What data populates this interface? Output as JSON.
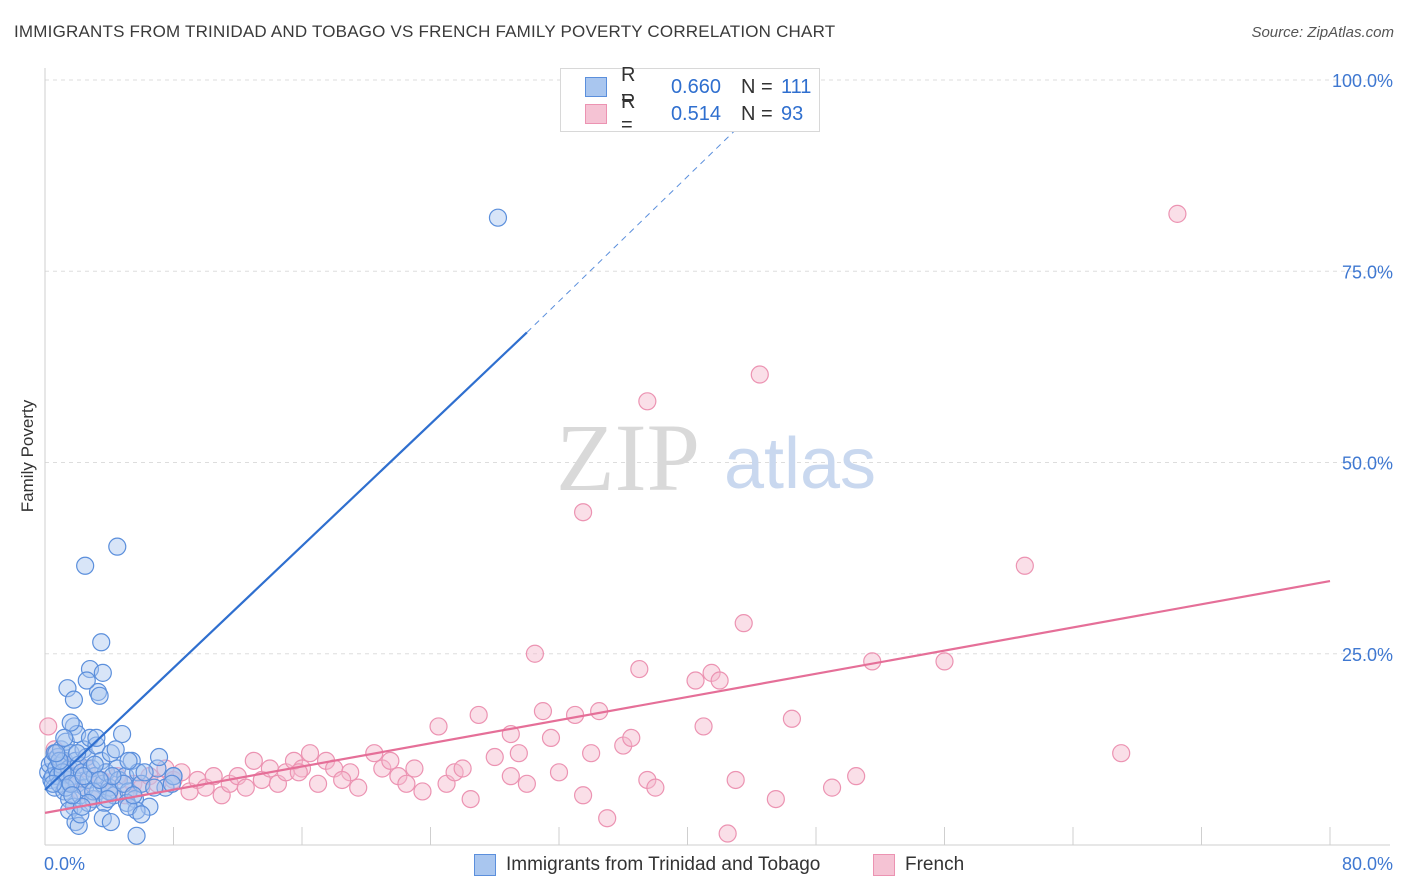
{
  "header": {
    "title": "IMMIGRANTS FROM TRINIDAD AND TOBAGO VS FRENCH FAMILY POVERTY CORRELATION CHART",
    "source": "Source: ZipAtlas.com"
  },
  "watermark": {
    "zip": "ZIP",
    "atlas": "atlas"
  },
  "legend": {
    "series1": {
      "r_label": "R =",
      "r_value": "0.660",
      "n_label": "N =",
      "n_value": "111"
    },
    "series2": {
      "r_label": "R =",
      "r_value": "0.514",
      "n_label": "N =",
      "n_value": "93"
    }
  },
  "colors": {
    "blue": "#2f6fcf",
    "blue_fill": "#a9c6ef",
    "blue_stroke": "#5b8fdc",
    "pink": "#e56f98",
    "pink_fill": "#f5b8cc",
    "pink_stroke": "#ec93b2",
    "grid": "#dddddd",
    "tick_text": "#3f78d1"
  },
  "chart_data": {
    "type": "scatter",
    "xlabel": "",
    "ylabel": "Family Poverty",
    "xlim": [
      0,
      80
    ],
    "ylim": [
      0,
      100
    ],
    "x_tick_labels": [
      "0.0%",
      "80.0%"
    ],
    "y_ticks": [
      25,
      50,
      75,
      100
    ],
    "y_tick_labels": [
      "25.0%",
      "50.0%",
      "75.0%",
      "100.0%"
    ],
    "grid": true,
    "series": [
      {
        "name": "Immigrants from Trinidad and Tobago",
        "color": "#2f6fcf",
        "trend": {
          "x": [
            0,
            30
          ],
          "y": [
            7.2,
            67
          ],
          "dashed_to": [
            43,
            93.5
          ]
        },
        "points": [
          [
            0.2,
            9.5
          ],
          [
            0.3,
            10.5
          ],
          [
            0.4,
            8.5
          ],
          [
            0.5,
            11
          ],
          [
            0.5,
            9
          ],
          [
            0.6,
            12
          ],
          [
            0.6,
            7.5
          ],
          [
            0.7,
            10
          ],
          [
            0.8,
            9
          ],
          [
            0.8,
            11.5
          ],
          [
            0.9,
            8
          ],
          [
            1.0,
            10.5
          ],
          [
            1.0,
            12.5
          ],
          [
            1.1,
            9.5
          ],
          [
            1.2,
            7
          ],
          [
            1.2,
            11
          ],
          [
            1.3,
            13.5
          ],
          [
            1.4,
            8.5
          ],
          [
            1.5,
            10
          ],
          [
            1.5,
            6
          ],
          [
            1.6,
            12
          ],
          [
            1.7,
            9
          ],
          [
            1.8,
            15.5
          ],
          [
            1.8,
            5
          ],
          [
            1.9,
            11
          ],
          [
            2.0,
            8
          ],
          [
            2.0,
            14.5
          ],
          [
            2.1,
            10.5
          ],
          [
            2.2,
            6.5
          ],
          [
            2.3,
            9.5
          ],
          [
            2.4,
            12.5
          ],
          [
            2.5,
            7.5
          ],
          [
            2.6,
            11.5
          ],
          [
            2.7,
            8.5
          ],
          [
            2.8,
            14
          ],
          [
            2.9,
            10
          ],
          [
            3.0,
            6
          ],
          [
            3.1,
            9
          ],
          [
            3.2,
            13
          ],
          [
            3.3,
            7
          ],
          [
            3.5,
            11
          ],
          [
            3.6,
            8
          ],
          [
            3.7,
            5.5
          ],
          [
            3.8,
            9.5
          ],
          [
            4.0,
            7.5
          ],
          [
            4.1,
            12
          ],
          [
            4.3,
            6.5
          ],
          [
            4.5,
            10
          ],
          [
            4.6,
            8.5
          ],
          [
            4.8,
            14.5
          ],
          [
            5.0,
            9
          ],
          [
            5.2,
            7
          ],
          [
            5.4,
            11
          ],
          [
            5.6,
            6
          ],
          [
            5.8,
            9.5
          ],
          [
            6.0,
            8
          ],
          [
            6.5,
            5
          ],
          [
            7.0,
            10
          ],
          [
            7.5,
            7.5
          ],
          [
            8.0,
            9
          ],
          [
            2.5,
            36.5
          ],
          [
            4.5,
            39
          ],
          [
            3.5,
            26.5
          ],
          [
            2.8,
            23
          ],
          [
            3.6,
            22.5
          ],
          [
            1.4,
            20.5
          ],
          [
            3.3,
            20
          ],
          [
            1.8,
            19
          ],
          [
            3.4,
            19.5
          ],
          [
            2.6,
            21.5
          ],
          [
            1.6,
            16
          ],
          [
            3.2,
            14
          ],
          [
            4.4,
            12.5
          ],
          [
            5.2,
            11
          ],
          [
            7.1,
            11.5
          ],
          [
            8.0,
            9
          ],
          [
            6.2,
            9.5
          ],
          [
            5.1,
            5.5
          ],
          [
            1.5,
            4.5
          ],
          [
            3.6,
            3.5
          ],
          [
            4.1,
            3
          ],
          [
            1.9,
            3
          ],
          [
            2.1,
            2.5
          ],
          [
            5.7,
            4.5
          ],
          [
            5.2,
            5
          ],
          [
            7.9,
            8
          ],
          [
            4.0,
            7
          ],
          [
            2.2,
            4
          ],
          [
            3.0,
            7
          ],
          [
            1.1,
            9.5
          ],
          [
            1.3,
            7.5
          ],
          [
            0.9,
            11
          ],
          [
            2.7,
            5.5
          ],
          [
            3.9,
            6
          ],
          [
            1.6,
            8
          ],
          [
            2.4,
            9
          ],
          [
            0.7,
            12
          ],
          [
            1.2,
            14
          ],
          [
            2.0,
            12
          ],
          [
            3.1,
            10.5
          ],
          [
            4.9,
            8
          ],
          [
            5.5,
            6.5
          ],
          [
            6.8,
            7.5
          ],
          [
            2.3,
            5
          ],
          [
            1.7,
            6.5
          ],
          [
            0.5,
            8
          ],
          [
            6.0,
            4
          ],
          [
            4.2,
            9
          ],
          [
            3.4,
            8.5
          ],
          [
            5.7,
            1.2
          ],
          [
            28.2,
            82
          ]
        ]
      },
      {
        "name": "French",
        "color": "#e56f98",
        "trend": {
          "x": [
            0,
            80
          ],
          "y": [
            4.2,
            34.5
          ]
        },
        "points": [
          [
            0.2,
            15.5
          ],
          [
            0.6,
            12.5
          ],
          [
            1.0,
            11
          ],
          [
            1.4,
            9.5
          ],
          [
            1.8,
            8
          ],
          [
            2.2,
            7
          ],
          [
            2.6,
            10
          ],
          [
            3.0,
            6
          ],
          [
            3.5,
            8.5
          ],
          [
            4.0,
            7
          ],
          [
            4.5,
            9
          ],
          [
            5.0,
            6.5
          ],
          [
            5.5,
            8
          ],
          [
            6.0,
            7.5
          ],
          [
            6.5,
            9
          ],
          [
            7.0,
            8
          ],
          [
            7.5,
            10
          ],
          [
            8.0,
            8.5
          ],
          [
            8.5,
            9.5
          ],
          [
            9.0,
            7
          ],
          [
            9.5,
            8.5
          ],
          [
            10.0,
            7.5
          ],
          [
            10.5,
            9
          ],
          [
            11.0,
            6.5
          ],
          [
            11.5,
            8
          ],
          [
            12.0,
            9
          ],
          [
            12.5,
            7.5
          ],
          [
            13.0,
            11
          ],
          [
            13.5,
            8.5
          ],
          [
            14.0,
            10
          ],
          [
            14.5,
            8
          ],
          [
            15.0,
            9.5
          ],
          [
            15.5,
            11
          ],
          [
            16.0,
            10
          ],
          [
            16.5,
            12
          ],
          [
            17.0,
            8
          ],
          [
            17.5,
            11
          ],
          [
            18.0,
            10
          ],
          [
            19.0,
            9.5
          ],
          [
            19.5,
            7.5
          ],
          [
            20.5,
            12
          ],
          [
            21.0,
            10
          ],
          [
            21.5,
            11
          ],
          [
            22.0,
            9
          ],
          [
            23.0,
            10
          ],
          [
            23.5,
            7
          ],
          [
            24.5,
            15.5
          ],
          [
            25.0,
            8
          ],
          [
            25.5,
            9.5
          ],
          [
            26.0,
            10
          ],
          [
            26.5,
            6
          ],
          [
            27.0,
            17
          ],
          [
            28.0,
            11.5
          ],
          [
            29.0,
            9
          ],
          [
            29.5,
            12
          ],
          [
            30.0,
            8
          ],
          [
            30.5,
            25
          ],
          [
            31.0,
            17.5
          ],
          [
            31.5,
            14
          ],
          [
            32.0,
            9.5
          ],
          [
            33.0,
            17
          ],
          [
            33.5,
            6.5
          ],
          [
            34.0,
            12
          ],
          [
            34.5,
            17.5
          ],
          [
            35.0,
            3.5
          ],
          [
            36.0,
            13
          ],
          [
            36.5,
            14
          ],
          [
            37.0,
            23
          ],
          [
            37.5,
            8.5
          ],
          [
            38.0,
            7.5
          ],
          [
            40.5,
            21.5
          ],
          [
            41.5,
            22.5
          ],
          [
            42.0,
            21.5
          ],
          [
            41.0,
            15.5
          ],
          [
            42.5,
            1.5
          ],
          [
            43.0,
            8.5
          ],
          [
            43.5,
            29
          ],
          [
            45.5,
            6
          ],
          [
            46.5,
            16.5
          ],
          [
            49.0,
            7.5
          ],
          [
            50.5,
            9
          ],
          [
            51.5,
            24
          ],
          [
            56.0,
            24
          ],
          [
            61.0,
            36.5
          ],
          [
            67.0,
            12
          ],
          [
            70.5,
            82.5
          ],
          [
            44.5,
            61.5
          ],
          [
            37.5,
            58
          ],
          [
            33.5,
            43.5
          ],
          [
            29.0,
            14.5
          ],
          [
            18.5,
            8.5
          ],
          [
            22.5,
            8
          ],
          [
            15.8,
            9.5
          ]
        ]
      }
    ]
  }
}
